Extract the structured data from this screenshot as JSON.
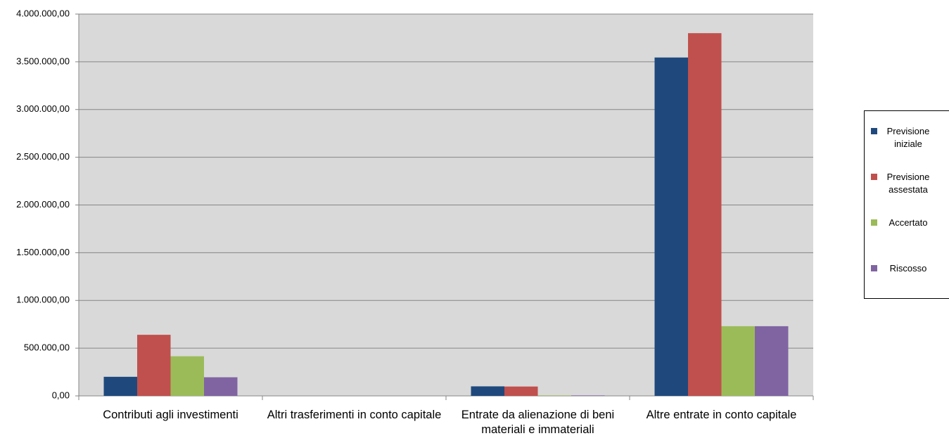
{
  "chart_data": {
    "type": "bar",
    "categories": [
      "Contributi agli investimenti",
      "Altri trasferimenti in conto capitale",
      "Entrate da alienazione di beni materiali e immateriali",
      "Altre entrate in conto capitale"
    ],
    "series": [
      {
        "name": "Previsione iniziale",
        "color": "#1F497D",
        "values": [
          200000,
          0,
          100000,
          3545000
        ]
      },
      {
        "name": "Previsione assestata",
        "color": "#C0504D",
        "values": [
          640000,
          0,
          98000,
          3800000
        ]
      },
      {
        "name": "Accertato",
        "color": "#9BBB59",
        "values": [
          415000,
          0,
          5000,
          730000
        ]
      },
      {
        "name": "Riscosso",
        "color": "#8064A2",
        "values": [
          195000,
          0,
          5000,
          730000
        ]
      }
    ],
    "ylim": [
      0,
      4000000
    ],
    "yticks": [
      {
        "value": 0,
        "label": "0,00"
      },
      {
        "value": 500000,
        "label": "500.000,00"
      },
      {
        "value": 1000000,
        "label": "1.000.000,00"
      },
      {
        "value": 1500000,
        "label": "1.500.000,00"
      },
      {
        "value": 2000000,
        "label": "2.000.000,00"
      },
      {
        "value": 2500000,
        "label": "2.500.000,00"
      },
      {
        "value": 3000000,
        "label": "3.000.000,00"
      },
      {
        "value": 3500000,
        "label": "3.500.000,00"
      },
      {
        "value": 4000000,
        "label": "4.000.000,00"
      }
    ],
    "grid": true,
    "legend": "right"
  }
}
